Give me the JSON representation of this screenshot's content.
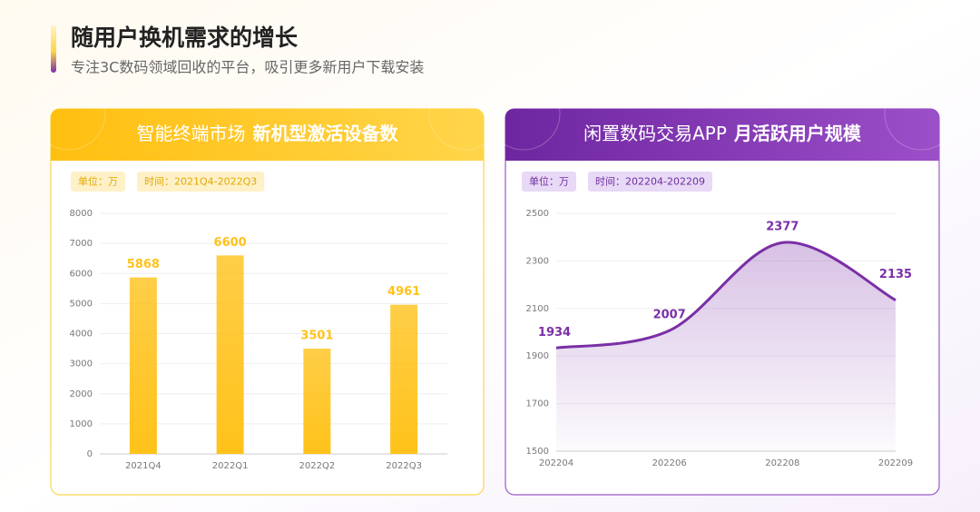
{
  "header": {
    "title": "随用户换机需求的增长",
    "subtitle": "专注3C数码领域回收的平台，吸引更多新用户下载安装"
  },
  "chart_data": [
    {
      "type": "bar",
      "title": "智能终端市场",
      "title_emphasis": "新机型激活设备数",
      "unit": "单位：万",
      "period": "时间：2021Q4-2022Q3",
      "categories": [
        "2021Q4",
        "2022Q1",
        "2022Q2",
        "2022Q3"
      ],
      "values": [
        5868,
        6600,
        3501,
        4961
      ],
      "color": "#ffc21a",
      "ylim": [
        0,
        8000
      ],
      "yticks": [
        0,
        1000,
        2000,
        3000,
        4000,
        5000,
        6000,
        7000,
        8000
      ],
      "grid": true
    },
    {
      "type": "line",
      "title": "闲置数码交易APP",
      "title_emphasis": "月活跃用户规模",
      "unit": "单位：万",
      "period": "时间：202204-202209",
      "categories": [
        "202204",
        "202206",
        "202208",
        "202209"
      ],
      "values": [
        1934,
        2007,
        2377,
        2135
      ],
      "color": "#7a2fa6",
      "ylim": [
        1500,
        2500
      ],
      "yticks": [
        1500,
        1700,
        1900,
        2100,
        2300,
        2500
      ],
      "grid": true
    }
  ]
}
